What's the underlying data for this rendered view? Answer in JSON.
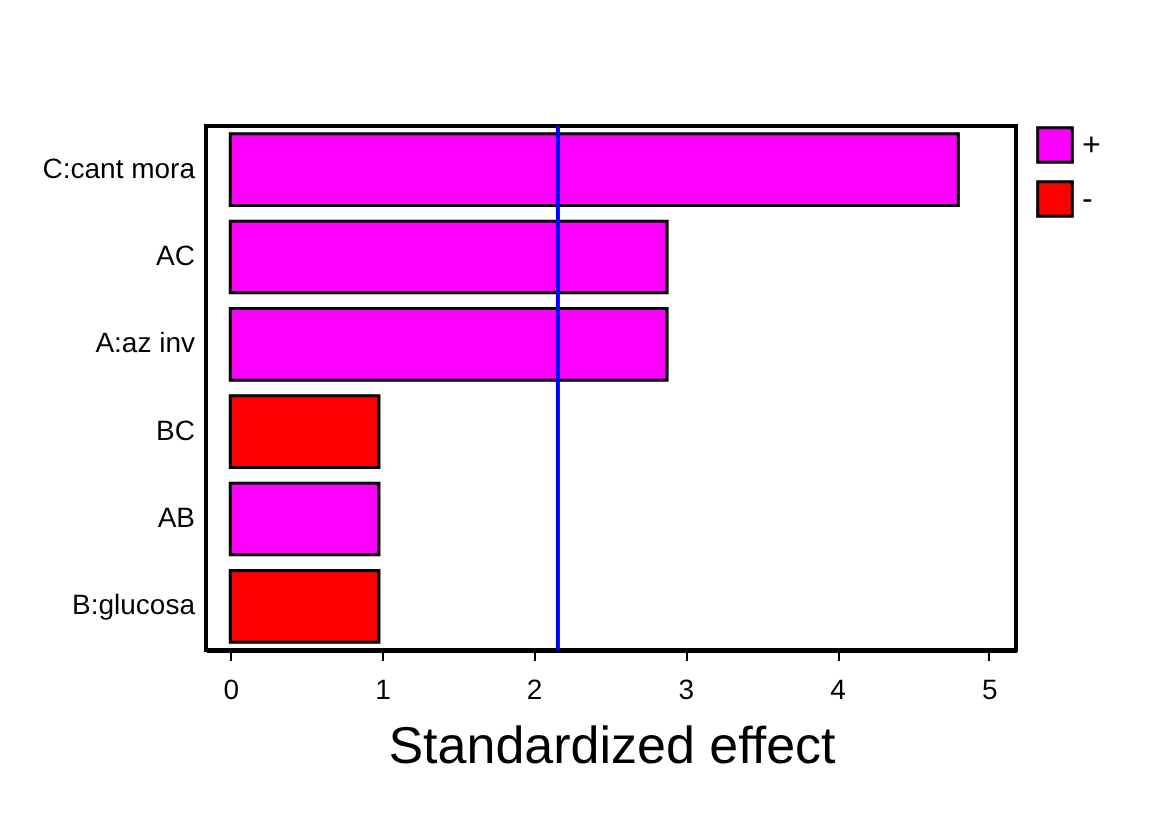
{
  "chart_data": {
    "type": "bar",
    "orientation": "horizontal",
    "stacked": true,
    "xlabel": "Standardized effect",
    "categories": [
      "C:cant mora",
      "AC",
      "A:az inv",
      "BC",
      "AB",
      "B:glucosa"
    ],
    "series": [
      {
        "name": "+",
        "color": "#ff00ff",
        "values": [
          4.8,
          2.88,
          2.88,
          null,
          0.98,
          null
        ]
      },
      {
        "name": "-",
        "color": "#ff0000",
        "values": [
          null,
          null,
          null,
          0.98,
          null,
          0.98
        ]
      }
    ],
    "xlim": [
      -0.16,
      5.18
    ],
    "xticks": [
      0,
      1,
      2,
      3,
      4,
      5
    ],
    "ref_lines": [
      {
        "axis": "x",
        "value": 2.16,
        "color": "#0000ff"
      }
    ],
    "legend": "right",
    "grid": false
  }
}
